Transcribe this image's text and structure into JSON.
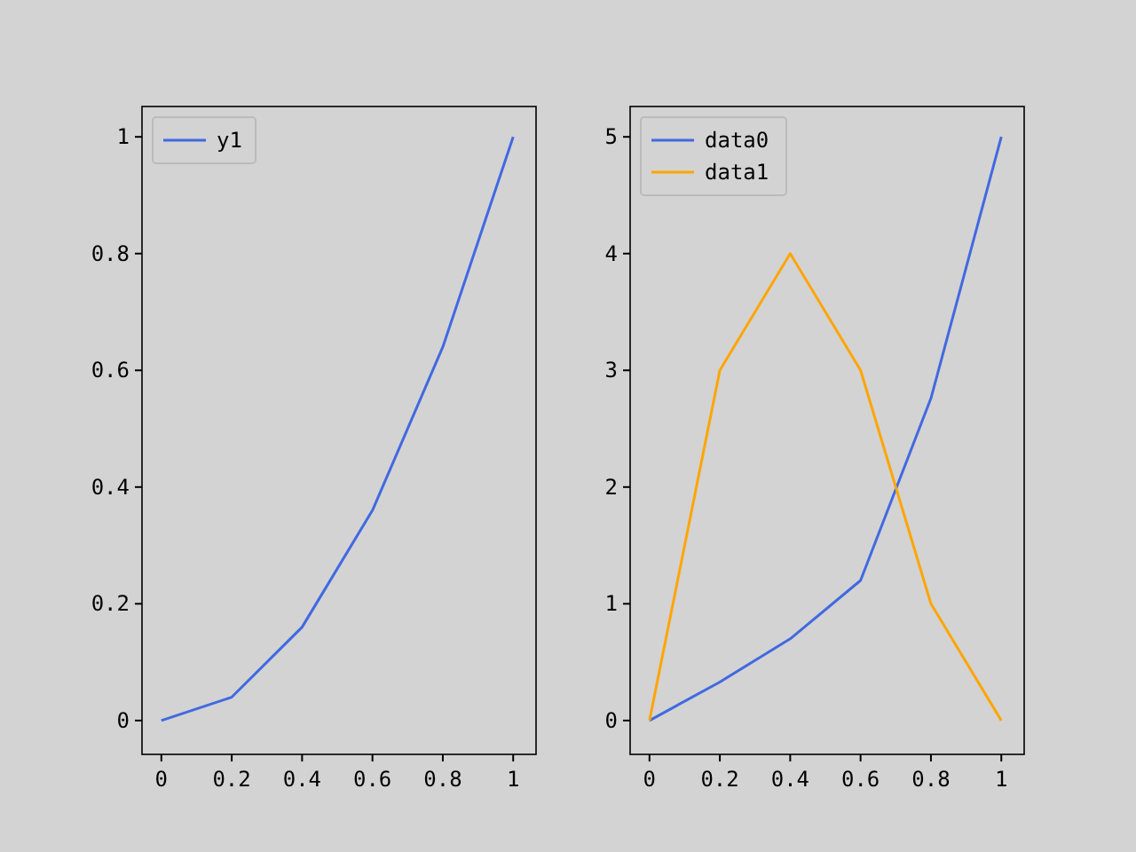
{
  "chart_data": [
    {
      "type": "line",
      "x": [
        0,
        0.2,
        0.4,
        0.6,
        0.8,
        1
      ],
      "series": [
        {
          "name": "y1",
          "color": "#4169e1",
          "values": [
            0,
            0.04,
            0.16,
            0.36,
            0.64,
            1
          ]
        }
      ],
      "xlim": [
        -0.055,
        1.065
      ],
      "ylim": [
        -0.058,
        1.052
      ],
      "xticks": [
        0,
        0.2,
        0.4,
        0.6,
        0.8,
        1
      ],
      "yticks": [
        0,
        0.2,
        0.4,
        0.6,
        0.8,
        1
      ],
      "legend": "top left",
      "grid": false
    },
    {
      "type": "line",
      "x": [
        0,
        0.2,
        0.4,
        0.6,
        0.8,
        1
      ],
      "series": [
        {
          "name": "data0",
          "color": "#4169e1",
          "values": [
            0,
            0.33,
            0.7,
            1.2,
            2.76,
            5
          ]
        },
        {
          "name": "data1",
          "color": "#ffa500",
          "values": [
            0,
            3,
            4,
            3,
            1,
            0
          ]
        }
      ],
      "xlim": [
        -0.055,
        1.065
      ],
      "ylim": [
        -0.29,
        5.26
      ],
      "xticks": [
        0,
        0.2,
        0.4,
        0.6,
        0.8,
        1
      ],
      "yticks": [
        0,
        1,
        2,
        3,
        4,
        5
      ],
      "legend": "top left",
      "grid": false
    }
  ]
}
